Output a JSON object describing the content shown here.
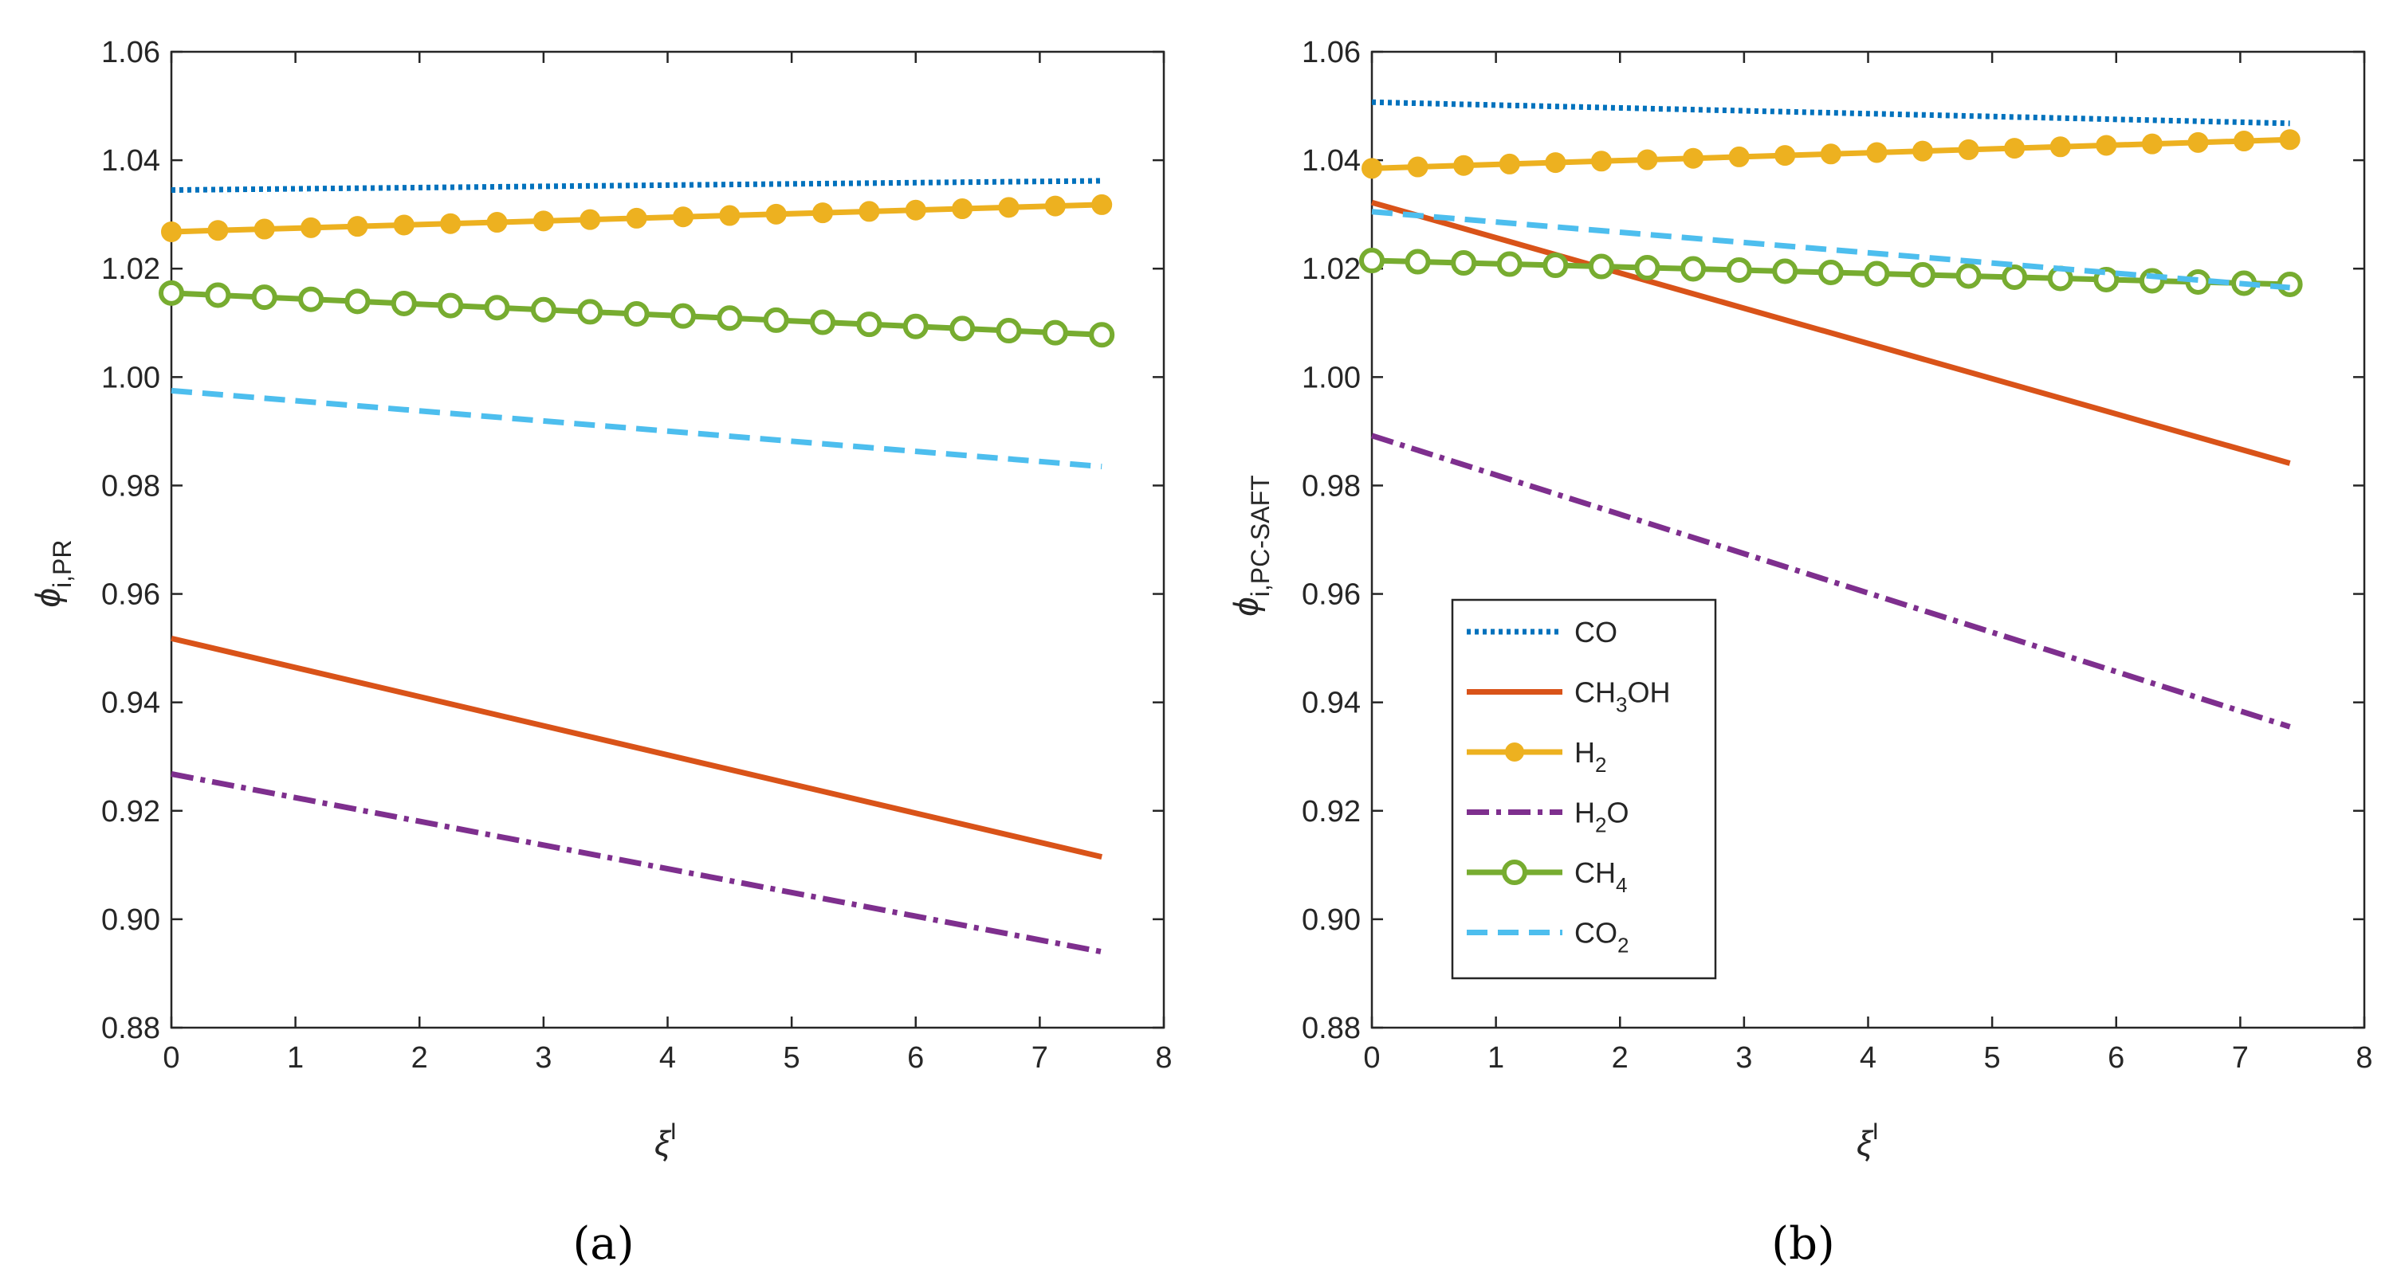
{
  "colors": {
    "CO": "#0072BD",
    "CH3OH": "#D95319",
    "H2": "#EDB120",
    "H2O": "#7E2F8E",
    "CH4": "#77AC30",
    "CO2": "#4DBEEE"
  },
  "legend": {
    "placement": "lower-left inside panel (b)",
    "entries": [
      {
        "key": "CO",
        "base": "CO",
        "sub": "",
        "tail": "",
        "style": "dotted"
      },
      {
        "key": "CH3OH",
        "base": "CH",
        "sub": "3",
        "tail": "OH",
        "style": "solid"
      },
      {
        "key": "H2",
        "base": "H",
        "sub": "2",
        "tail": "",
        "style": "solid-filled-circle"
      },
      {
        "key": "H2O",
        "base": "H",
        "sub": "2",
        "tail": "O",
        "style": "dash-dot"
      },
      {
        "key": "CH4",
        "base": "CH",
        "sub": "4",
        "tail": "",
        "style": "solid-open-circle"
      },
      {
        "key": "CO2",
        "base": "CO",
        "sub": "2",
        "tail": "",
        "style": "dashed"
      }
    ]
  },
  "chart_data": [
    {
      "type": "line",
      "caption": "(a)",
      "xlabel": "ξ",
      "xlabel_sup": "I",
      "ylabel": "ϕ",
      "ylabel_sub": "i,PR",
      "xlim": [
        0,
        8
      ],
      "ylim": [
        0.88,
        1.06
      ],
      "xticks": [
        "0",
        "1",
        "2",
        "3",
        "4",
        "5",
        "6",
        "7",
        "8"
      ],
      "yticks": [
        "0.88",
        "0.90",
        "0.92",
        "0.94",
        "0.96",
        "0.98",
        "1.00",
        "1.02",
        "1.04",
        "1.06"
      ],
      "grid": false,
      "x_range": [
        0,
        7.5
      ],
      "series": [
        {
          "key": "CO",
          "y_start": 1.0345,
          "y_end": 1.0362
        },
        {
          "key": "CH3OH",
          "y_start": 0.9518,
          "y_end": 0.9115
        },
        {
          "key": "H2",
          "y_start": 1.0268,
          "y_end": 1.0318
        },
        {
          "key": "H2O",
          "y_start": 0.9268,
          "y_end": 0.894
        },
        {
          "key": "CH4",
          "y_start": 1.0155,
          "y_end": 1.0078
        },
        {
          "key": "CO2",
          "y_start": 0.9975,
          "y_end": 0.9835
        }
      ]
    },
    {
      "type": "line",
      "caption": "(b)",
      "xlabel": "ξ",
      "xlabel_sup": "I",
      "ylabel": "ϕ",
      "ylabel_sub": "i,PC-SAFT",
      "xlim": [
        0,
        8
      ],
      "ylim": [
        0.88,
        1.06
      ],
      "xticks": [
        "0",
        "1",
        "2",
        "3",
        "4",
        "5",
        "6",
        "7",
        "8"
      ],
      "yticks": [
        "0.88",
        "0.90",
        "0.92",
        "0.94",
        "0.96",
        "0.98",
        "1.00",
        "1.02",
        "1.04",
        "1.06"
      ],
      "grid": false,
      "x_range": [
        0,
        7.4
      ],
      "series": [
        {
          "key": "CO",
          "y_start": 1.0507,
          "y_end": 1.0468
        },
        {
          "key": "CH3OH",
          "y_start": 1.0322,
          "y_end": 0.9841
        },
        {
          "key": "H2",
          "y_start": 1.0385,
          "y_end": 1.0438
        },
        {
          "key": "H2O",
          "y_start": 0.9892,
          "y_end": 0.9355
        },
        {
          "key": "CH4",
          "y_start": 1.0215,
          "y_end": 1.0171
        },
        {
          "key": "CO2",
          "y_start": 1.0305,
          "y_end": 1.0165
        }
      ]
    }
  ]
}
